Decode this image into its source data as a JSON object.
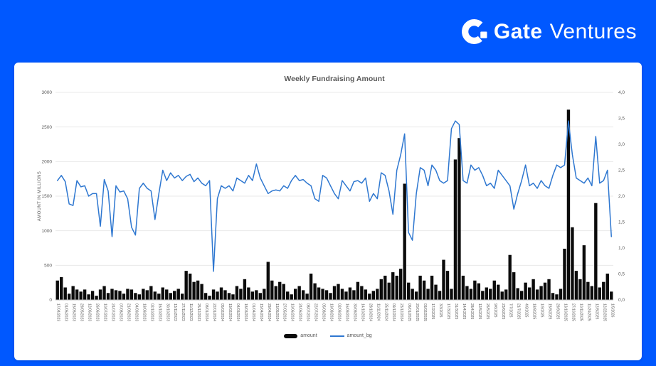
{
  "brand": {
    "name_bold": "Gate",
    "name_light": "Ventures",
    "background_color": "#0058ff",
    "text_color": "#ffffff"
  },
  "chart_data": {
    "type": "bar",
    "title": "Weekly Fundraising Amount",
    "ylabel_left": "AMOUNT IN MILLIONS",
    "left_ylim": [
      0,
      3000
    ],
    "right_ylim": [
      0,
      4.0
    ],
    "left_axis_ticks": [
      0,
      500,
      1000,
      1500,
      2000,
      2500,
      3000
    ],
    "right_axis_ticks": [
      "0,0",
      "0,5",
      "1,0",
      "1,5",
      "2,0",
      "2,5",
      "3,0",
      "3,5",
      "4,0"
    ],
    "grid": "horizontal",
    "legend_position": "bottom-center",
    "x_tick_every": 2,
    "x_tick_labels": [
      "17/04/2023",
      "01/05/2023",
      "15/05/2023",
      "29/05/2023",
      "12/06/2023",
      "26/06/2023",
      "10/07/2023",
      "24/07/2023",
      "07/08/2023",
      "21/08/2023",
      "04/09/2023",
      "18/09/2023",
      "02/10/2023",
      "16/10/2023",
      "30/10/2023",
      "13/11/2023",
      "27/11/2023",
      "11/12/2023",
      "25/12/2023",
      "08/01/2024",
      "22/01/2024",
      "05/02/2024",
      "19/02/2024",
      "04/03/2024",
      "18/03/2024",
      "01/04/2024",
      "15/04/2024",
      "29/04/2024",
      "13/05/2024",
      "27/05/2024",
      "10/06/2024",
      "24/06/2024",
      "08/07/2024",
      "22/07/2024",
      "05/08/2024",
      "19/08/2024",
      "02/09/2024",
      "16/09/2024",
      "30/09/2024",
      "14/10/2024",
      "28/10/2024",
      "11/11/2024",
      "25/11/2024",
      "09/12/2024",
      "23/12/2024",
      "06/01/2025",
      "20/01/2025",
      "03/02/2025",
      "17/2/2025",
      "3/3/2025",
      "17/3/2025",
      "31/3/2025",
      "14/4/2025",
      "28/4/2025",
      "12/5/2025",
      "26/5/2025",
      "9/6/2025",
      "23/6/2025",
      "7/7/2025",
      "21/7/2025",
      "4/8/2025",
      "18/8/2025",
      "1/9/2025",
      "15/9/2025",
      "29/9/2025",
      "13/10/2025",
      "27/10/2025",
      "10/11/2025",
      "11/24/2025",
      "12/8/2025",
      "12/22/2025",
      "1/5/2026"
    ],
    "series": [
      {
        "name": "amount",
        "type": "bar",
        "axis": "left",
        "color": "#0b0b0b",
        "values": [
          280,
          330,
          180,
          90,
          200,
          150,
          120,
          150,
          80,
          130,
          60,
          150,
          200,
          100,
          160,
          140,
          130,
          90,
          160,
          150,
          100,
          80,
          160,
          140,
          200,
          120,
          90,
          180,
          150,
          100,
          130,
          160,
          90,
          420,
          380,
          260,
          280,
          230,
          100,
          60,
          150,
          120,
          180,
          140,
          100,
          80,
          200,
          160,
          300,
          180,
          120,
          140,
          100,
          160,
          550,
          280,
          200,
          260,
          230,
          120,
          80,
          160,
          200,
          140,
          90,
          380,
          240,
          180,
          160,
          140,
          100,
          200,
          230,
          160,
          120,
          180,
          140,
          260,
          200,
          150,
          90,
          130,
          160,
          300,
          350,
          250,
          400,
          350,
          450,
          1680,
          250,
          160,
          120,
          350,
          280,
          160,
          350,
          220,
          130,
          580,
          420,
          160,
          2030,
          2340,
          350,
          200,
          160,
          280,
          240,
          130,
          180,
          160,
          280,
          220,
          120,
          150,
          650,
          400,
          170,
          130,
          250,
          180,
          300,
          150,
          200,
          250,
          300,
          100,
          80,
          160,
          740,
          2750,
          1050,
          420,
          300,
          790,
          260,
          200,
          1400,
          180,
          260,
          380,
          120
        ]
      },
      {
        "name": "amount_bg",
        "type": "line",
        "axis": "right",
        "color": "#2e77d0",
        "values": [
          2.3,
          2.4,
          2.28,
          1.85,
          1.82,
          2.3,
          2.18,
          2.2,
          2.0,
          2.05,
          2.05,
          1.42,
          2.32,
          2.1,
          1.22,
          2.2,
          2.08,
          2.1,
          1.95,
          1.4,
          1.25,
          2.15,
          2.25,
          2.15,
          2.1,
          1.55,
          2.05,
          2.5,
          2.3,
          2.45,
          2.35,
          2.4,
          2.3,
          2.38,
          2.42,
          2.28,
          2.35,
          2.25,
          2.2,
          2.3,
          0.55,
          1.95,
          2.2,
          2.15,
          2.2,
          2.1,
          2.35,
          2.3,
          2.25,
          2.4,
          2.3,
          2.62,
          2.35,
          2.2,
          2.05,
          2.1,
          2.12,
          2.1,
          2.2,
          2.15,
          2.3,
          2.4,
          2.3,
          2.32,
          2.25,
          2.2,
          1.95,
          1.9,
          2.4,
          2.35,
          2.2,
          2.05,
          1.95,
          2.3,
          2.2,
          2.1,
          2.28,
          2.3,
          2.25,
          2.35,
          1.9,
          2.05,
          1.95,
          2.45,
          2.4,
          2.1,
          1.65,
          2.5,
          2.8,
          3.2,
          1.3,
          1.15,
          2.05,
          2.55,
          2.5,
          2.2,
          2.6,
          2.5,
          2.3,
          2.25,
          2.3,
          3.3,
          3.45,
          3.38,
          2.3,
          2.25,
          2.6,
          2.5,
          2.55,
          2.4,
          2.2,
          2.25,
          2.15,
          2.5,
          2.4,
          2.3,
          2.2,
          1.75,
          2.05,
          2.3,
          2.6,
          2.2,
          2.25,
          2.15,
          2.3,
          2.2,
          2.15,
          2.4,
          2.6,
          2.55,
          2.6,
          3.45,
          2.8,
          2.35,
          2.3,
          2.25,
          2.35,
          2.2,
          3.15,
          2.25,
          2.3,
          2.5,
          1.22
        ]
      }
    ],
    "legend": [
      {
        "label": "amount",
        "swatch": "bar",
        "color": "#0b0b0b"
      },
      {
        "label": "amount_bg",
        "swatch": "line",
        "color": "#2e77d0"
      }
    ],
    "colors": {
      "grid": "#eaeaea",
      "axis_text": "#595959",
      "axis_line": "#b0b0b0"
    }
  }
}
